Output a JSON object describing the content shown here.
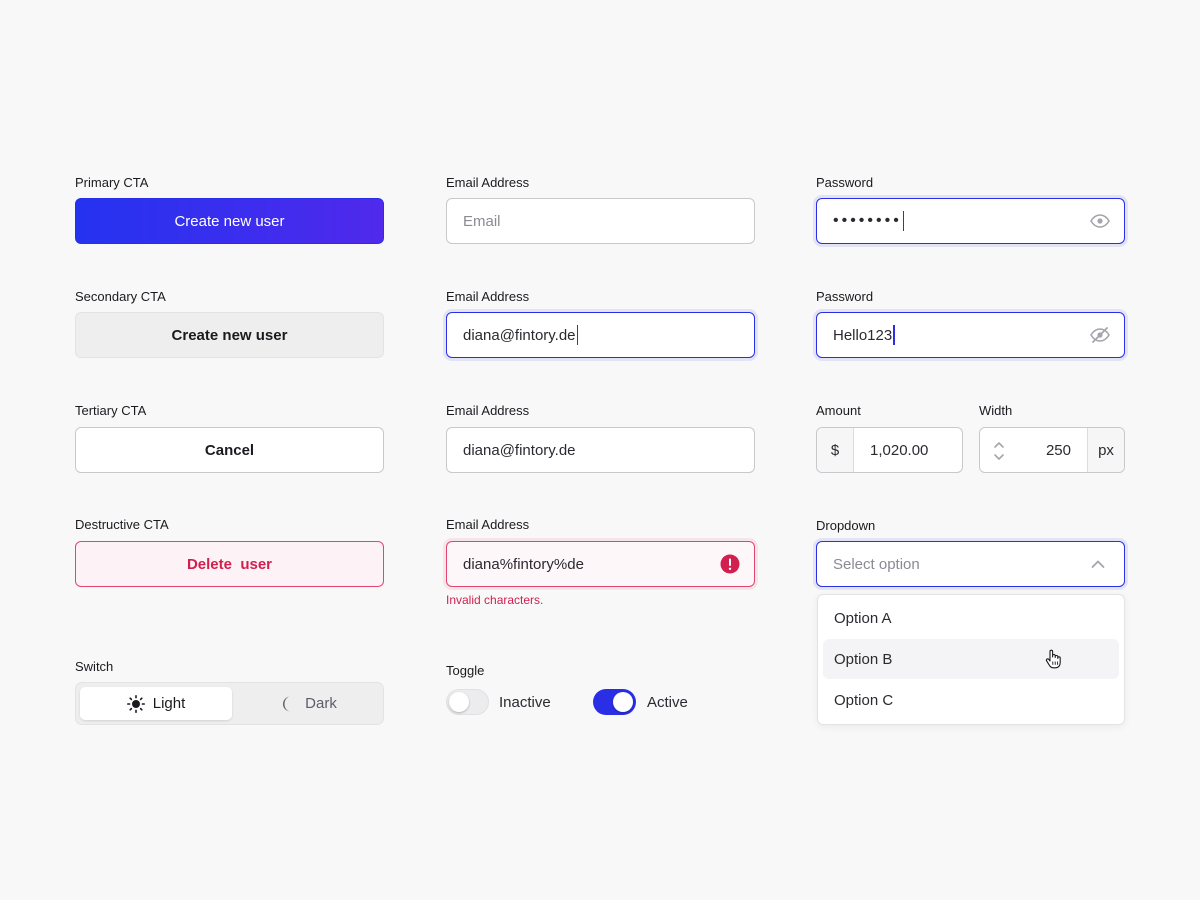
{
  "buttons": {
    "primary": {
      "label": "Primary CTA",
      "text": "Create new user"
    },
    "secondary": {
      "label": "Secondary CTA",
      "text": "Create new user"
    },
    "tertiary": {
      "label": "Tertiary CTA",
      "text": "Cancel"
    },
    "destructive": {
      "label": "Destructive CTA",
      "text": "Delete  user"
    }
  },
  "email_fields": [
    {
      "label": "Email Address",
      "placeholder": "Email",
      "value": ""
    },
    {
      "label": "Email Address",
      "value": "diana@fintory.de"
    },
    {
      "label": "Email Address",
      "value": "diana@fintory.de"
    },
    {
      "label": "Email Address",
      "value": "diana%fintory%de",
      "error": "Invalid characters."
    }
  ],
  "password_fields": [
    {
      "label": "Password",
      "value": "••••••••"
    },
    {
      "label": "Password",
      "value": "Hello123"
    }
  ],
  "amount": {
    "label": "Amount",
    "prefix": "$",
    "value": "1,020.00"
  },
  "width": {
    "label": "Width",
    "value": "250",
    "suffix": "px"
  },
  "dropdown": {
    "label": "Dropdown",
    "placeholder": "Select option",
    "options": [
      "Option A",
      "Option B",
      "Option C"
    ],
    "hovered_option": "Option B"
  },
  "switch": {
    "label": "Switch",
    "options": [
      "Light",
      "Dark"
    ],
    "selected": "Light"
  },
  "toggle": {
    "label": "Toggle",
    "inactive_label": "Inactive",
    "active_label": "Active"
  },
  "colors": {
    "accent": "#2a2fe6",
    "gradient_start": "#2433f0",
    "gradient_end": "#5029ec",
    "destructive": "#d11f4f",
    "background": "#f8f8f9"
  }
}
